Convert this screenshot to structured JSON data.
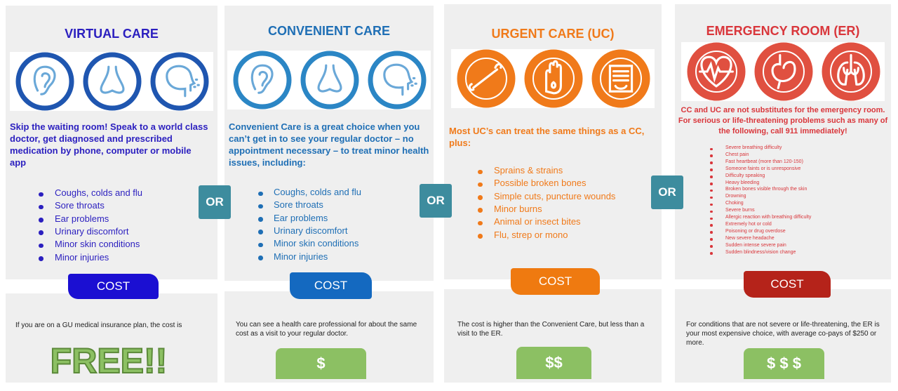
{
  "columns": [
    {
      "title": "VIRTUAL CARE",
      "intro": "Skip the waiting room!  Speak to a world class doctor, get diagnosed and prescribed medication by phone, computer or mobile app",
      "items": [
        "Coughs, colds and flu",
        "Sore throats",
        "Ear problems",
        "Urinary discomfort",
        "Minor skin conditions",
        "Minor injuries"
      ],
      "cost_label": "COST",
      "cost_text": "If you are on a GU medical insurance plan, the cost is",
      "cost_badge": "FREE!!"
    },
    {
      "title": "CONVENIENT CARE",
      "intro": "Convenient Care is a great choice when you can’t get in to see your regular doctor – no appointment necessary – to treat minor health issues, including:",
      "items": [
        "Coughs, colds and flu",
        "Sore throats",
        "Ear problems",
        "Urinary discomfort",
        "Minor skin conditions",
        "Minor injuries"
      ],
      "cost_label": "COST",
      "cost_text": "You can see a health care professional for about the same cost as a visit to your regular doctor.",
      "cost_badge": "$"
    },
    {
      "title": "URGENT CARE (UC)",
      "intro": "Most UC’s can treat the same things as a CC, plus:",
      "items": [
        "Sprains & strains",
        "Possible broken bones",
        "Simple cuts, puncture wounds",
        "Minor burns",
        "Animal or insect bites",
        "Flu, strep or mono"
      ],
      "cost_label": "COST",
      "cost_text": "The cost is higher than the Convenient Care, but less than a visit to the ER.",
      "cost_badge": "$$"
    },
    {
      "title": "EMERGENCY ROOM (ER)",
      "intro": "CC and UC are not substitutes for the emergency room. For serious or life-threatening problems such as many of the following, call 911 immediately!",
      "items": [
        "Severe breathing difficulty",
        "Chest pain",
        "Fast heartbeat (more than 120-150)",
        "Someone faints or is unresponsive",
        "Difficulty speaking",
        "Heavy bleeding",
        "Broken bones visible through the skin",
        "Drowning",
        "Choking",
        "Severe burns",
        "Allergic reaction with breathing difficulty",
        "Extremely hot or cold",
        "Poisoning or drug overdose",
        "New severe headache",
        "Sudden intense severe pain",
        "Sudden blindness/vision change"
      ],
      "cost_label": "COST",
      "cost_text": "For conditions that are not severe or life-threatening, the ER is your most expensive choice, with average co-pays of $250 or more.",
      "cost_badge": "$ $ $"
    }
  ],
  "connectors": [
    "OR",
    "OR",
    "OR"
  ]
}
